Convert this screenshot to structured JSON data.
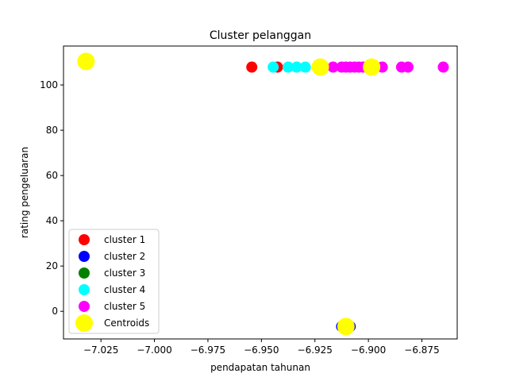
{
  "chart_data": {
    "type": "scatter",
    "title": "Cluster pelanggan",
    "xlabel": "pendapatan tahunan",
    "ylabel": "rating pengeluaran",
    "xlim": [
      -7.0425,
      -6.8585
    ],
    "ylim": [
      -12.2,
      117.2
    ],
    "xticks": [
      -7.025,
      -7.0,
      -6.975,
      -6.95,
      -6.925,
      -6.9,
      -6.875
    ],
    "xtick_labels": [
      "−7.025",
      "−7.000",
      "−6.975",
      "−6.950",
      "−6.925",
      "−6.900",
      "−6.875"
    ],
    "yticks": [
      0,
      20,
      40,
      60,
      80,
      100
    ],
    "ytick_labels": [
      "0",
      "20",
      "40",
      "60",
      "80",
      "100"
    ],
    "grid": false,
    "legend_position": "lower-left",
    "series": [
      {
        "name": "cluster 1",
        "color": "#ff0000",
        "marker_size": "normal",
        "points": [
          [
            -6.9545,
            107.9
          ],
          [
            -6.9425,
            107.9
          ]
        ]
      },
      {
        "name": "cluster 2",
        "color": "#0000ff",
        "marker_size": "normal",
        "points": [
          [
            -6.9125,
            -6.7
          ],
          [
            -6.9085,
            -6.7
          ]
        ]
      },
      {
        "name": "cluster 3",
        "color": "#008000",
        "marker_size": "normal",
        "points": []
      },
      {
        "name": "cluster 4",
        "color": "#00ffff",
        "marker_size": "normal",
        "points": [
          [
            -6.9445,
            107.9
          ],
          [
            -6.9375,
            107.9
          ],
          [
            -6.9335,
            107.9
          ],
          [
            -6.9295,
            107.9
          ]
        ]
      },
      {
        "name": "cluster 5",
        "color": "#ff00ff",
        "marker_size": "normal",
        "points": [
          [
            -6.9165,
            107.9
          ],
          [
            -6.9125,
            107.9
          ],
          [
            -6.9105,
            107.9
          ],
          [
            -6.9085,
            107.9
          ],
          [
            -6.9065,
            107.9
          ],
          [
            -6.9045,
            107.9
          ],
          [
            -6.9025,
            107.9
          ],
          [
            -6.9005,
            107.9
          ],
          [
            -6.8985,
            107.9
          ],
          [
            -6.8965,
            107.9
          ],
          [
            -6.8935,
            107.9
          ],
          [
            -6.8845,
            107.9
          ],
          [
            -6.8815,
            107.9
          ],
          [
            -6.865,
            107.9
          ]
        ]
      },
      {
        "name": "Centroids",
        "color": "#ffff00",
        "marker_size": "large",
        "points": [
          [
            -7.032,
            110.4
          ],
          [
            -6.9225,
            107.9
          ],
          [
            -6.8985,
            107.9
          ],
          [
            -6.9105,
            -6.7
          ]
        ]
      }
    ]
  }
}
